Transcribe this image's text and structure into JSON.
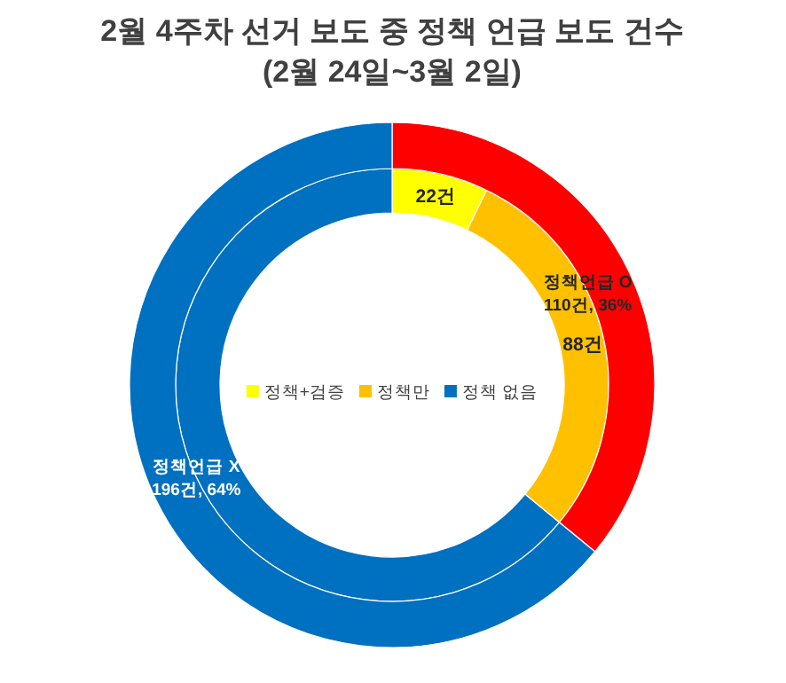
{
  "chart_data": [
    {
      "type": "donut",
      "title": "2월 4주차 선거 보도 중 정책 언급 보도 건수",
      "subtitle": "(2월 24일~3월 2일)",
      "categories": [
        "정책언급 O",
        "정책언급 X"
      ],
      "values": [
        110,
        196
      ],
      "colors": [
        "#ff0000",
        "#0070c0"
      ],
      "value_labels": [
        "110건, 36%",
        "196건, 64%"
      ]
    },
    {
      "type": "donut",
      "categories": [
        "정책+검증",
        "정책만",
        "정책 없음"
      ],
      "values": [
        22,
        88,
        196
      ],
      "colors": [
        "#ffff00",
        "#ffc000",
        "#0070c0"
      ],
      "value_labels": [
        "22건",
        "88건",
        null
      ],
      "legend": "center"
    }
  ]
}
